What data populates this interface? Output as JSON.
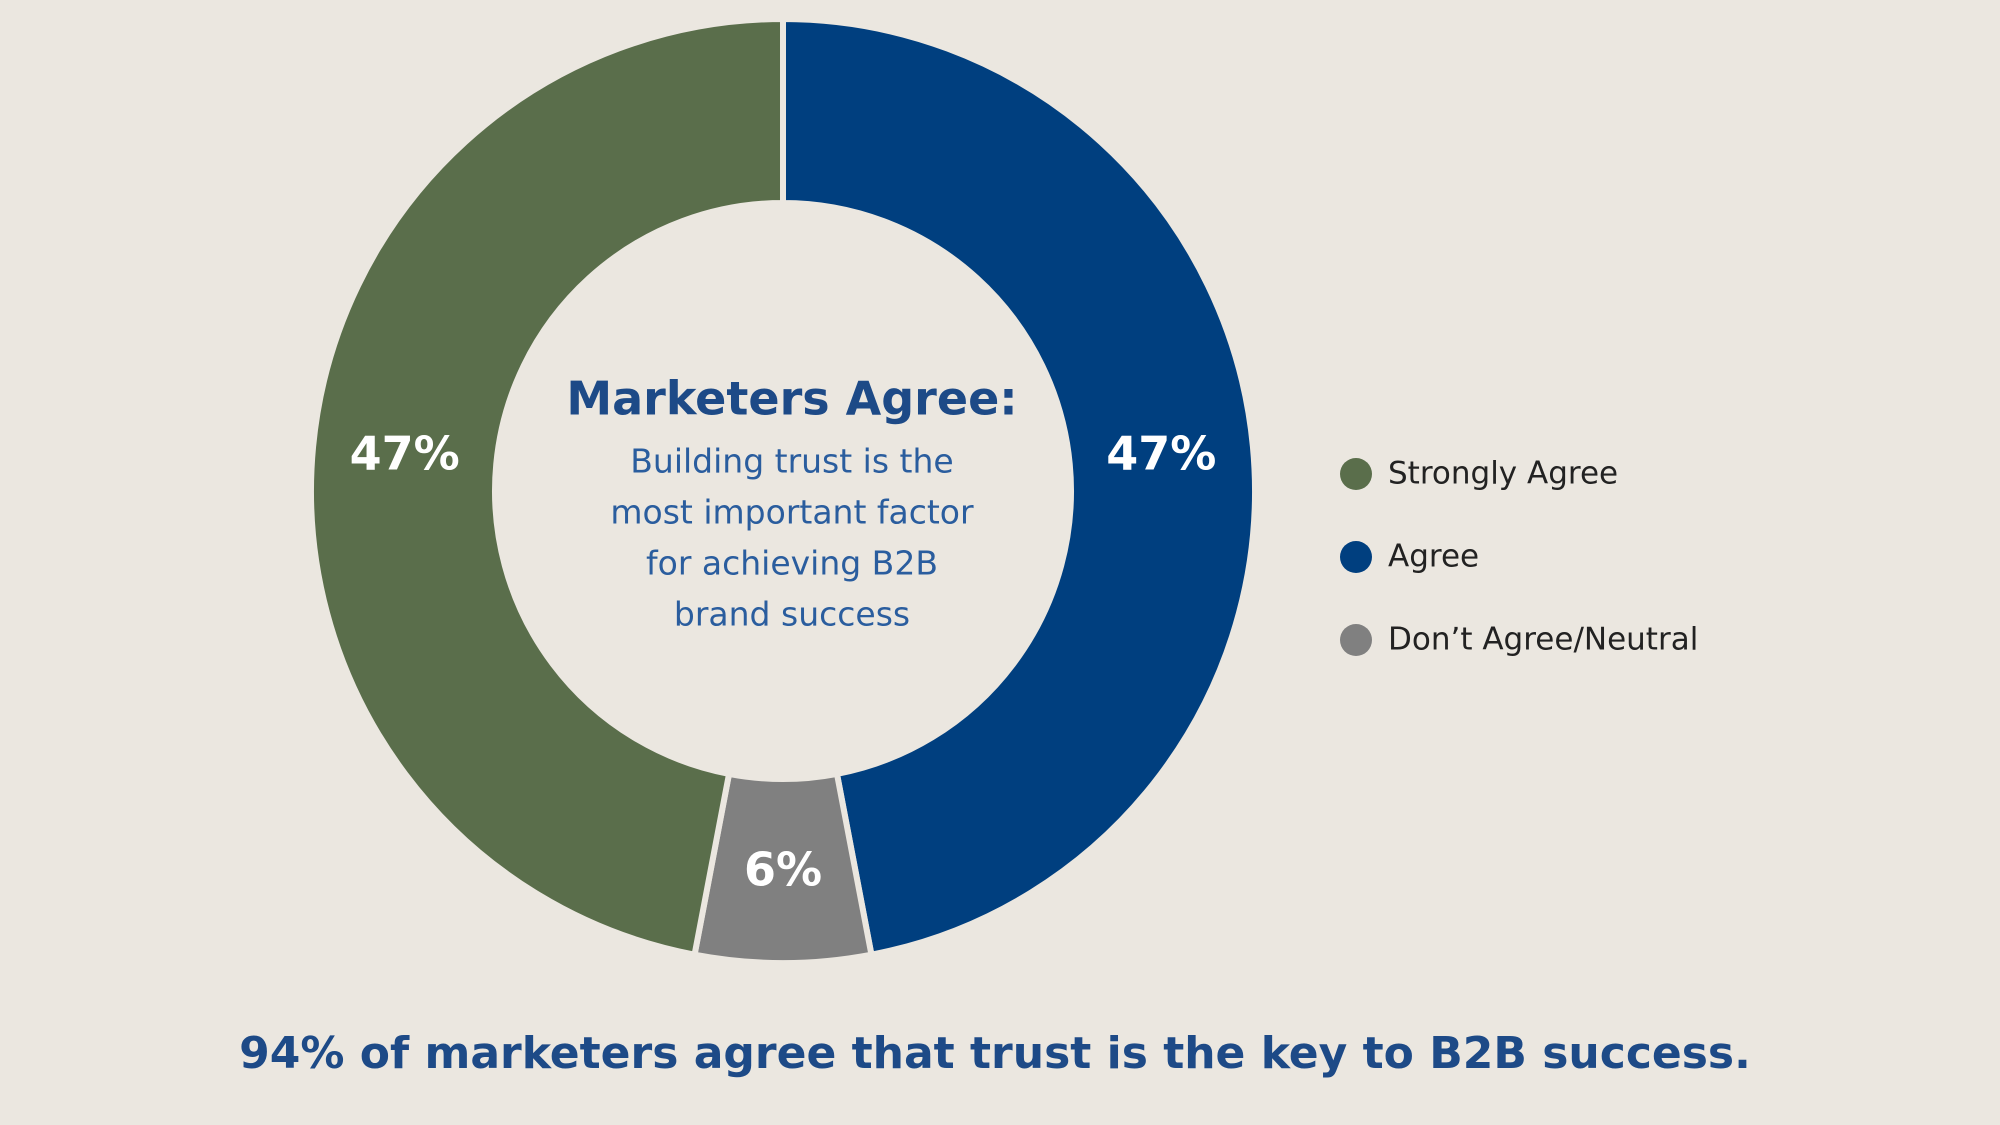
{
  "chart_data": {
    "type": "donut",
    "center_title": "Marketers Agree:",
    "center_text": [
      "Building trust is the",
      "most important factor",
      "for achieving B2B",
      "brand success"
    ],
    "caption": "94% of marketers agree that trust is the key to B2B success.",
    "categories": [
      "Strongly Agree",
      "Agree",
      "Don’t Agree/Neutral"
    ],
    "values": [
      47,
      47,
      6
    ],
    "value_labels": [
      "47%",
      "47%",
      "6%"
    ],
    "colors": [
      "#5a6e4b",
      "#003f7f",
      "#808080"
    ],
    "legend": "right"
  }
}
